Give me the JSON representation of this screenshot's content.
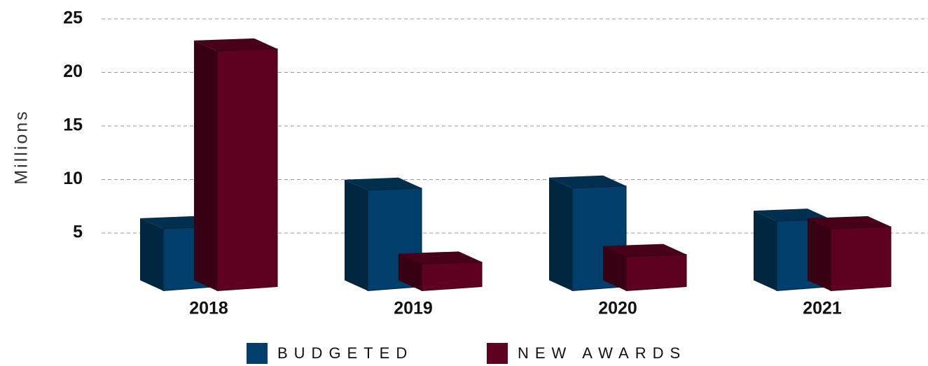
{
  "chart_data": {
    "type": "bar3d",
    "y_label": "Millions",
    "categories": [
      "2018",
      "2019",
      "2020",
      "2021"
    ],
    "series": [
      {
        "name": "BUDGETED",
        "color": "#003f6b",
        "values": [
          5.4,
          9,
          9.2,
          6.1
        ]
      },
      {
        "name": "NEW AWARDS",
        "color": "#5e0020",
        "values": [
          22,
          2.1,
          2.8,
          5.4
        ]
      }
    ],
    "ylim": [
      0,
      25
    ],
    "yticks": [
      5,
      10,
      15,
      20,
      25
    ],
    "grid": true
  }
}
